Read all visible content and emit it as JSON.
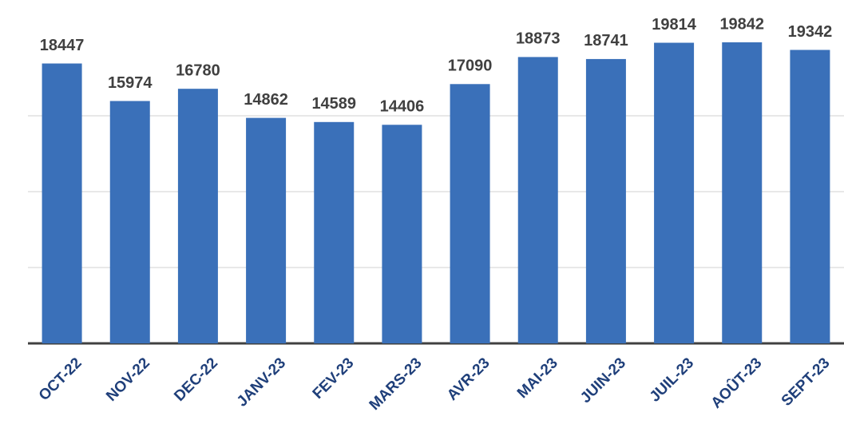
{
  "chart_data": {
    "type": "bar",
    "categories": [
      "OCT-22",
      "NOV-22",
      "DEC-22",
      "JANV-23",
      "FEV-23",
      "MARS-23",
      "AVR-23",
      "MAI-23",
      "JUIN-23",
      "JUIL-23",
      "AOÛT-23",
      "SEPT-23"
    ],
    "values": [
      18447,
      15974,
      16780,
      14862,
      14589,
      14406,
      17090,
      18873,
      18741,
      19814,
      19842,
      19342
    ],
    "color": "#3a70b9",
    "ylim": [
      0,
      20000
    ],
    "yticks": [
      0,
      5000,
      10000,
      15000
    ],
    "grid": true
  }
}
